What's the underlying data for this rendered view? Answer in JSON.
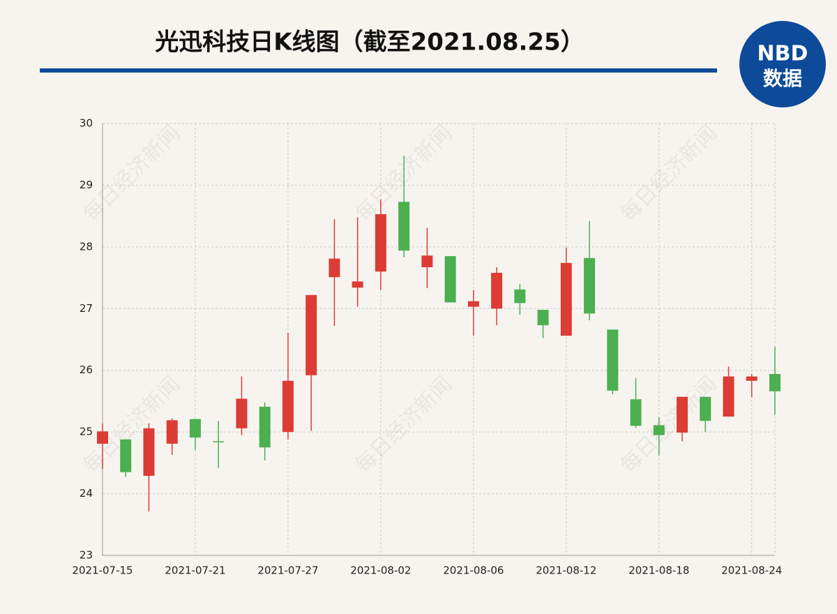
{
  "chart_data": {
    "type": "candlestick",
    "title": "光迅科技日K线图（截至2021.08.25）",
    "watermark": "每日经济新闻",
    "logo": {
      "line1": "NBD",
      "line2": "数据"
    },
    "categories": [
      "2021-07-15",
      null,
      null,
      null,
      "2021-07-21",
      null,
      null,
      null,
      "2021-07-27",
      null,
      null,
      null,
      "2021-08-02",
      null,
      null,
      null,
      "2021-08-06",
      null,
      null,
      null,
      "2021-08-12",
      null,
      null,
      null,
      "2021-08-18",
      null,
      null,
      null,
      "2021-08-24",
      null
    ],
    "open": [
      24.81,
      24.88,
      24.29,
      24.81,
      25.21,
      24.85,
      25.06,
      25.41,
      25.0,
      25.92,
      27.51,
      27.34,
      27.6,
      28.73,
      27.67,
      27.85,
      27.03,
      27.0,
      27.31,
      26.98,
      26.56,
      27.82,
      26.66,
      25.53,
      25.11,
      24.99,
      25.57,
      25.25,
      25.83,
      25.94
    ],
    "close": [
      25.01,
      24.35,
      25.06,
      25.19,
      24.91,
      24.84,
      25.54,
      24.75,
      25.83,
      27.22,
      27.81,
      27.44,
      28.53,
      27.94,
      27.86,
      27.1,
      27.12,
      27.58,
      27.09,
      26.73,
      27.74,
      26.92,
      25.67,
      25.1,
      24.95,
      25.57,
      25.18,
      25.9,
      25.9,
      25.66
    ],
    "high": [
      25.14,
      24.88,
      25.14,
      25.22,
      25.21,
      25.18,
      25.9,
      25.48,
      26.61,
      27.22,
      28.45,
      28.48,
      28.77,
      29.48,
      28.31,
      27.85,
      27.3,
      27.67,
      27.4,
      26.98,
      27.99,
      28.42,
      26.66,
      25.87,
      25.24,
      25.57,
      25.57,
      26.06,
      25.94,
      26.38
    ],
    "low": [
      24.4,
      24.27,
      23.71,
      24.63,
      24.71,
      24.42,
      24.95,
      24.54,
      24.88,
      25.02,
      26.72,
      27.03,
      27.3,
      27.83,
      27.33,
      27.1,
      26.56,
      26.73,
      26.9,
      26.52,
      26.56,
      26.81,
      25.61,
      25.07,
      24.62,
      24.85,
      25.0,
      25.25,
      25.56,
      25.28
    ],
    "up_color": "#dc3c35",
    "down_color": "#4caf50",
    "ylim": [
      23,
      30
    ],
    "yticks": [
      23,
      24,
      25,
      26,
      27,
      28,
      29,
      30
    ],
    "grid": true
  }
}
